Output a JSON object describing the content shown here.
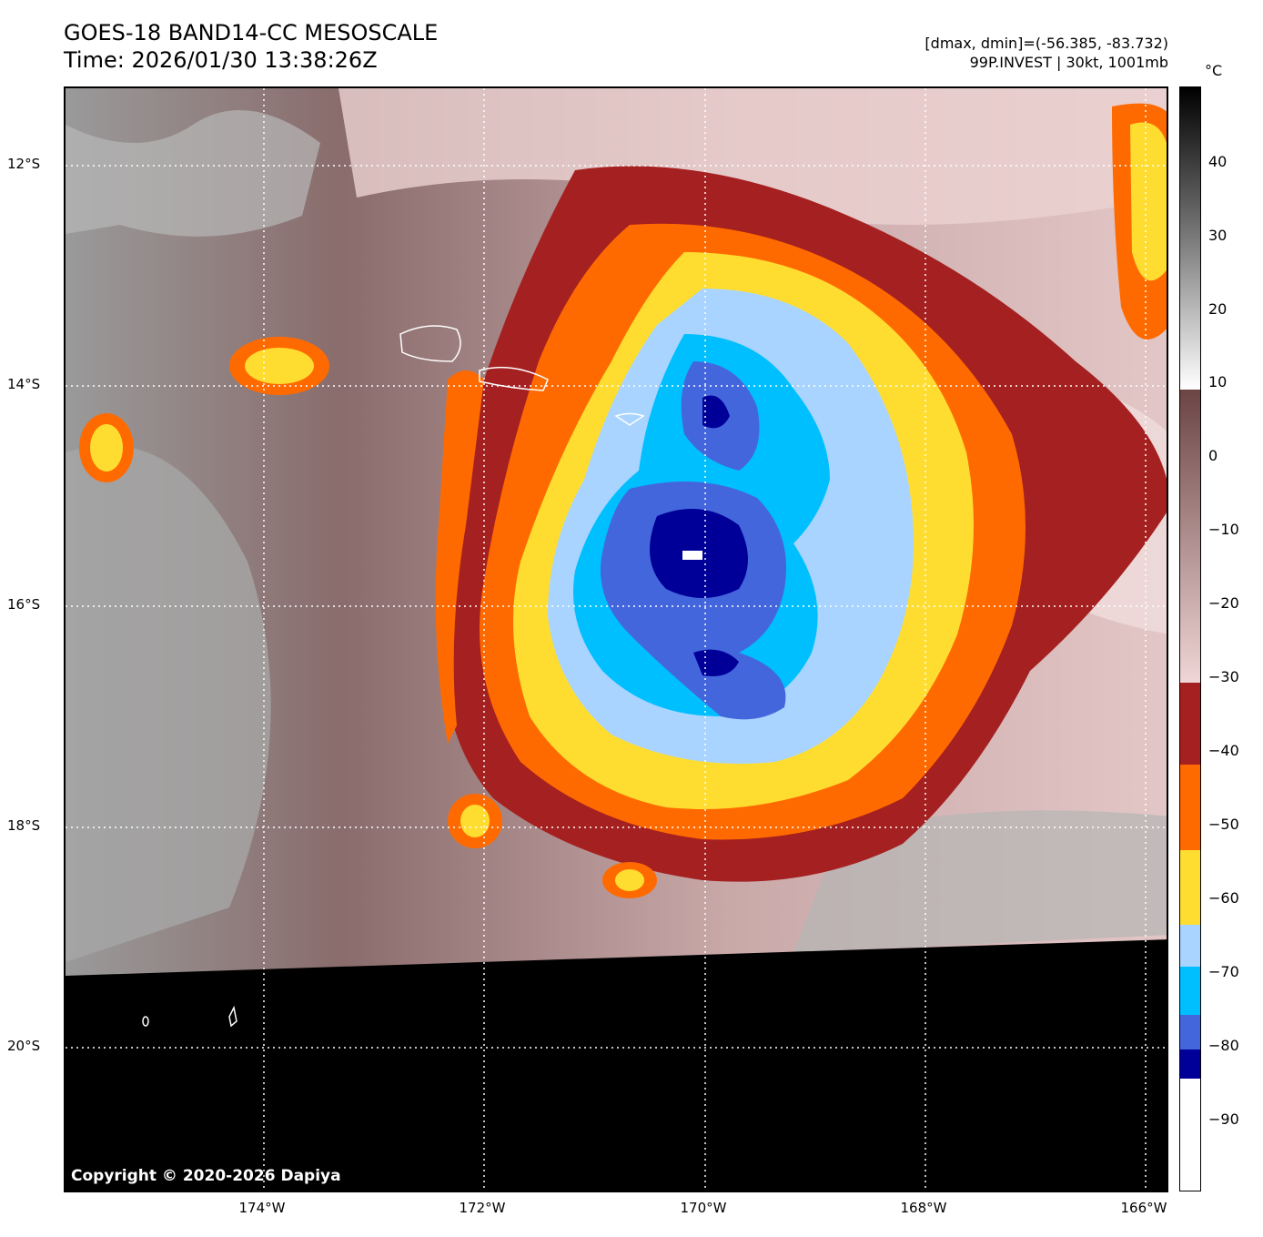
{
  "header": {
    "title": "GOES-18 BAND14-CC MESOSCALE",
    "time": "Time: 2026/01/30 13:38:26Z",
    "dminmax": "[dmax, dmin]=(-56.385, -83.732)",
    "storm": "99P.INVEST | 30kt, 1001mb"
  },
  "map": {
    "copyright": "Copyright © 2020-2026 Dapiya",
    "lat_labels": [
      "12°S",
      "14°S",
      "16°S",
      "18°S",
      "20°S"
    ],
    "lon_labels": [
      "174°W",
      "172°W",
      "170°W",
      "168°W",
      "166°W"
    ]
  },
  "colorbar": {
    "unit": "°C",
    "ticks": [
      "40",
      "30",
      "20",
      "10",
      "0",
      "−10",
      "−20",
      "−30",
      "−40",
      "−50",
      "−60",
      "−70",
      "−80",
      "−90"
    ],
    "colors": {
      "warm_top": "#000000",
      "gray_mid": "#7a7a7a",
      "white_10": "#ffffff",
      "brown": "#6b4444",
      "pink": "#f0d6d6",
      "darkred": "#a52020",
      "orange": "#ff6a00",
      "yellow": "#ffdd30",
      "lightblue": "#a8d4ff",
      "cyan": "#00bfff",
      "blue": "#4466dd",
      "navy": "#000099",
      "white_cold": "#ffffff"
    }
  }
}
